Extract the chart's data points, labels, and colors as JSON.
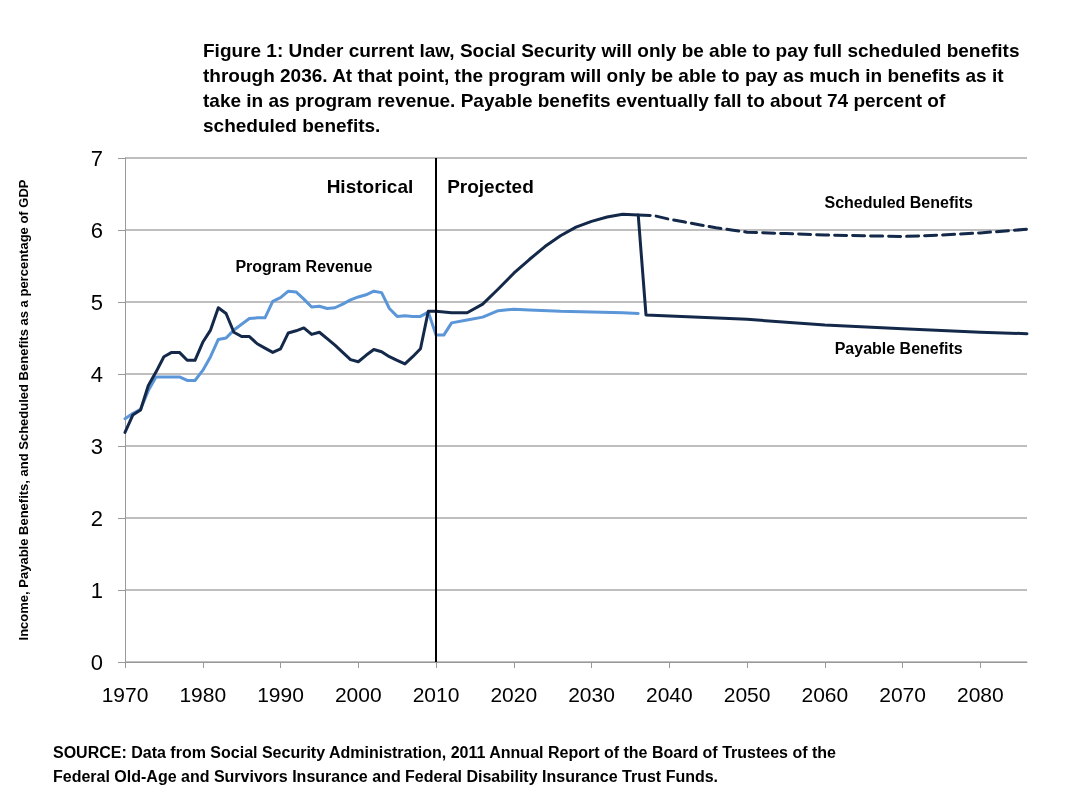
{
  "chart_data": {
    "type": "line",
    "title": "Figure 1: Under current law, Social Security will only be able to pay full scheduled benefits through 2036. At that point, the program will only be able to pay as much in benefits as it take in as program revenue. Payable benefits eventually fall to about 74 percent of scheduled benefits.",
    "ylabel": "Income, Payable Benefits, and Scheduled Benefits as a percentage of GDP",
    "xlim": [
      1970,
      2086
    ],
    "xticks": [
      1970,
      1980,
      1990,
      2000,
      2010,
      2020,
      2030,
      2040,
      2050,
      2060,
      2070,
      2080
    ],
    "ylim": [
      0,
      7
    ],
    "yticks": [
      0,
      1,
      2,
      3,
      4,
      5,
      6,
      7
    ],
    "grid": "y",
    "legend": false,
    "series": [
      {
        "name": "Program Revenue",
        "color": "#5a96d8",
        "x": [
          1970,
          1971,
          1972,
          1973,
          1974,
          1975,
          1976,
          1977,
          1978,
          1979,
          1980,
          1981,
          1982,
          1983,
          1984,
          1985,
          1986,
          1987,
          1988,
          1989,
          1990,
          1991,
          1992,
          1993,
          1994,
          1995,
          1996,
          1997,
          1998,
          1999,
          2000,
          2001,
          2002,
          2003,
          2004,
          2005,
          2006,
          2007,
          2008,
          2009,
          2010,
          2011,
          2012,
          2014,
          2016,
          2018,
          2020,
          2022,
          2026,
          2030,
          2034,
          2036
        ],
        "values": [
          3.38,
          3.45,
          3.51,
          3.77,
          3.96,
          3.96,
          3.96,
          3.96,
          3.91,
          3.91,
          4.05,
          4.24,
          4.48,
          4.5,
          4.61,
          4.69,
          4.77,
          4.78,
          4.78,
          5.01,
          5.06,
          5.15,
          5.14,
          5.04,
          4.93,
          4.94,
          4.91,
          4.92,
          4.97,
          5.03,
          5.07,
          5.1,
          5.15,
          5.13,
          4.91,
          4.8,
          4.81,
          4.8,
          4.8,
          4.86,
          4.54,
          4.54,
          4.71,
          4.75,
          4.79,
          4.88,
          4.9,
          4.89,
          4.87,
          4.86,
          4.85,
          4.84
        ]
      },
      {
        "name": "Payable Benefits",
        "color": "#14294a",
        "x": [
          1970,
          1971,
          1972,
          1973,
          1974,
          1975,
          1976,
          1977,
          1978,
          1979,
          1980,
          1981,
          1982,
          1983,
          1984,
          1985,
          1986,
          1987,
          1988,
          1989,
          1990,
          1991,
          1992,
          1993,
          1994,
          1995,
          1996,
          1997,
          1998,
          1999,
          2000,
          2001,
          2002,
          2003,
          2004,
          2005,
          2006,
          2007,
          2008,
          2009,
          2010,
          2012,
          2014,
          2016,
          2018,
          2020,
          2022,
          2024,
          2026,
          2028,
          2030,
          2032,
          2034,
          2036,
          2037,
          2050,
          2060,
          2070,
          2080,
          2086
        ],
        "values": [
          3.19,
          3.43,
          3.5,
          3.84,
          4.03,
          4.24,
          4.3,
          4.3,
          4.19,
          4.19,
          4.44,
          4.61,
          4.92,
          4.84,
          4.58,
          4.52,
          4.52,
          4.42,
          4.36,
          4.3,
          4.35,
          4.57,
          4.6,
          4.64,
          4.55,
          4.58,
          4.49,
          4.4,
          4.3,
          4.2,
          4.17,
          4.26,
          4.34,
          4.31,
          4.24,
          4.19,
          4.14,
          4.24,
          4.35,
          4.87,
          4.87,
          4.85,
          4.85,
          4.97,
          5.18,
          5.4,
          5.59,
          5.77,
          5.92,
          6.04,
          6.12,
          6.18,
          6.22,
          6.21,
          4.82,
          4.76,
          4.68,
          4.63,
          4.58,
          4.56
        ]
      },
      {
        "name": "Scheduled Benefits",
        "color": "#14294a",
        "line_style": "dashed",
        "x": [
          2036,
          2038,
          2040,
          2042,
          2044,
          2046,
          2048,
          2050,
          2055,
          2060,
          2065,
          2070,
          2075,
          2080,
          2086
        ],
        "values": [
          6.21,
          6.2,
          6.15,
          6.11,
          6.07,
          6.03,
          6.0,
          5.97,
          5.95,
          5.93,
          5.92,
          5.91,
          5.93,
          5.96,
          6.01
        ]
      }
    ],
    "ref_lines": [
      {
        "axis": "x",
        "value": 2010,
        "color": "#000000"
      }
    ],
    "annotations": [
      "Historical",
      "Projected",
      "SOURCE: Data from Social Security Administration, 2011 Annual Report of the Board of Trustees of the Federal Old-Age and Survivors Insurance and Federal Disability Insurance Trust Funds."
    ]
  }
}
